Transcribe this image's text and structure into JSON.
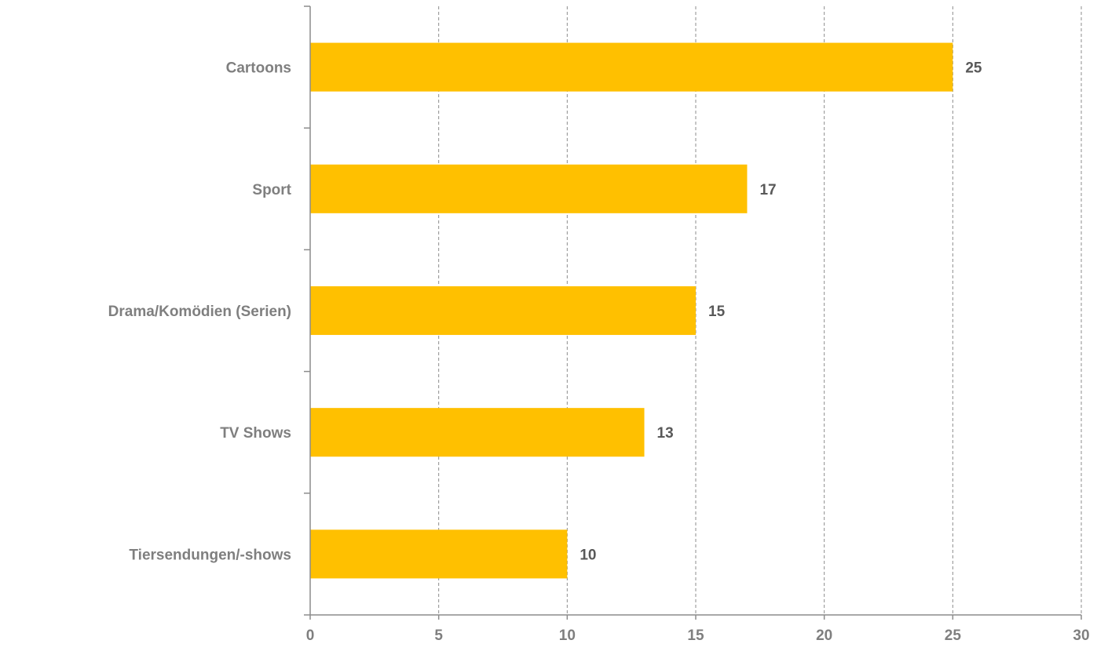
{
  "chart_data": {
    "type": "bar",
    "orientation": "horizontal",
    "categories": [
      "Cartoons",
      "Sport",
      "Drama/Komödien (Serien)",
      "TV Shows",
      "Tiersendungen/-shows"
    ],
    "values": [
      25,
      17,
      15,
      13,
      10
    ],
    "data_labels": [
      "25",
      "17",
      "15",
      "13",
      "10"
    ],
    "x_ticks": [
      "0",
      "5",
      "10",
      "15",
      "20",
      "25",
      "30"
    ],
    "xlim": [
      0,
      30
    ],
    "grid": "vertical dashed",
    "legend": "none",
    "title": "",
    "xlabel": "",
    "ylabel": "",
    "colors": {
      "bar": "#ffc000",
      "grid": "#8c8c8c",
      "axis": "#8c8c8c",
      "category_text": "#7f7f7f",
      "value_text": "#595959"
    }
  }
}
